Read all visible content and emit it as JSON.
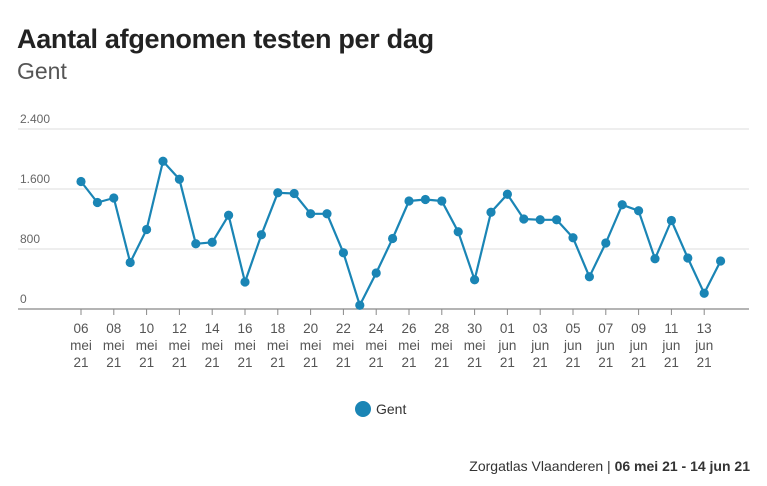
{
  "chart_title": "Aantal afgenomen testen per dag",
  "chart_subtitle": "Gent",
  "legend_label": "Gent",
  "footer": {
    "source": "Zorgatlas Vlaanderen",
    "separator": " | ",
    "range": "06 mei 21 - 14 jun 21"
  },
  "colors": {
    "series": "#1a85b5",
    "grid": "#dddddd",
    "axis": "#888888"
  },
  "chart_data": {
    "type": "line",
    "title": "Aantal afgenomen testen per dag",
    "subtitle": "Gent",
    "xlabel": "",
    "ylabel": "",
    "ylim": [
      0,
      2400
    ],
    "y_ticks": [
      0,
      800,
      1600,
      2400
    ],
    "y_tick_labels": [
      "0",
      "800",
      "1.600",
      "2.400"
    ],
    "grid": true,
    "legend_position": "bottom",
    "x_tick_labels": [
      [
        "06",
        "mei",
        "21"
      ],
      [
        "08",
        "mei",
        "21"
      ],
      [
        "10",
        "mei",
        "21"
      ],
      [
        "12",
        "mei",
        "21"
      ],
      [
        "14",
        "mei",
        "21"
      ],
      [
        "16",
        "mei",
        "21"
      ],
      [
        "18",
        "mei",
        "21"
      ],
      [
        "20",
        "mei",
        "21"
      ],
      [
        "22",
        "mei",
        "21"
      ],
      [
        "24",
        "mei",
        "21"
      ],
      [
        "26",
        "mei",
        "21"
      ],
      [
        "28",
        "mei",
        "21"
      ],
      [
        "30",
        "mei",
        "21"
      ],
      [
        "01",
        "jun",
        "21"
      ],
      [
        "03",
        "jun",
        "21"
      ],
      [
        "05",
        "jun",
        "21"
      ],
      [
        "07",
        "jun",
        "21"
      ],
      [
        "09",
        "jun",
        "21"
      ],
      [
        "11",
        "jun",
        "21"
      ],
      [
        "13",
        "jun",
        "21"
      ]
    ],
    "x": [
      "06 mei 21",
      "07 mei 21",
      "08 mei 21",
      "09 mei 21",
      "10 mei 21",
      "11 mei 21",
      "12 mei 21",
      "13 mei 21",
      "14 mei 21",
      "15 mei 21",
      "16 mei 21",
      "17 mei 21",
      "18 mei 21",
      "19 mei 21",
      "20 mei 21",
      "21 mei 21",
      "22 mei 21",
      "23 mei 21",
      "24 mei 21",
      "25 mei 21",
      "26 mei 21",
      "27 mei 21",
      "28 mei 21",
      "29 mei 21",
      "30 mei 21",
      "31 mei 21",
      "01 jun 21",
      "02 jun 21",
      "03 jun 21",
      "04 jun 21",
      "05 jun 21",
      "06 jun 21",
      "07 jun 21",
      "08 jun 21",
      "09 jun 21",
      "10 jun 21",
      "11 jun 21",
      "12 jun 21",
      "13 jun 21",
      "14 jun 21"
    ],
    "series": [
      {
        "name": "Gent",
        "values": [
          1700,
          1420,
          1480,
          620,
          1060,
          1970,
          1730,
          870,
          890,
          1250,
          360,
          990,
          1550,
          1540,
          1270,
          1270,
          750,
          50,
          480,
          940,
          1440,
          1460,
          1440,
          1030,
          390,
          1290,
          1530,
          1200,
          1190,
          1190,
          950,
          430,
          880,
          1390,
          1310,
          670,
          1180,
          680,
          210,
          640
        ]
      }
    ]
  }
}
